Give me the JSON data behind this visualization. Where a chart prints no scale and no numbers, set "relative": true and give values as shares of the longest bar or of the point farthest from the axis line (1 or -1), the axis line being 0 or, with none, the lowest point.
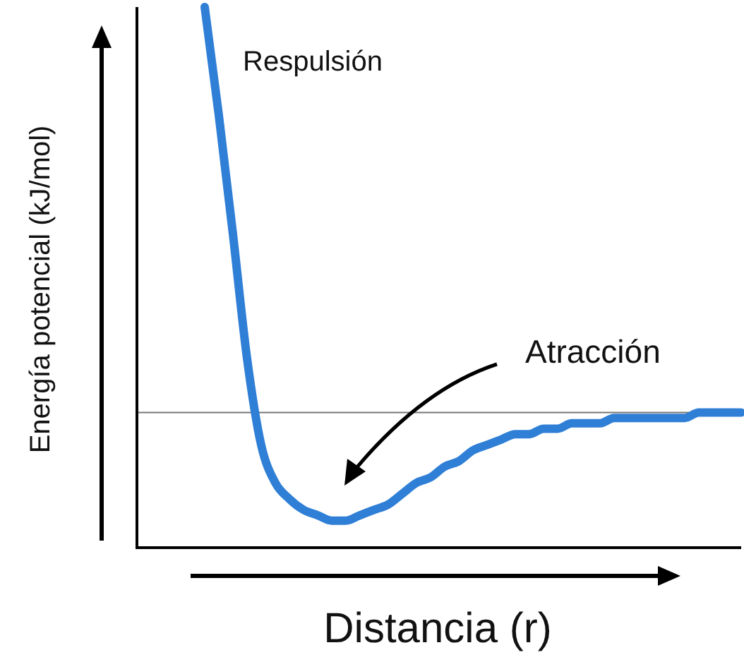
{
  "chart_data": {
    "type": "line",
    "relative": true,
    "xlabel": "Distancia (r)",
    "ylabel": "Energía potencial (kJ/mol)",
    "categories": [
      null,
      null,
      null,
      null,
      null,
      null,
      null,
      null,
      null,
      null,
      null,
      null,
      null,
      null,
      null,
      null,
      null,
      null,
      null,
      null,
      null,
      null,
      null,
      null,
      null,
      null,
      null,
      null,
      null,
      null,
      null,
      null,
      null,
      null,
      null,
      null,
      null,
      null,
      null
    ],
    "series": [
      {
        "color": "#2f7fd6",
        "values": [
          1.0,
          0.8,
          0.58,
          0.35,
          0.19,
          0.12,
          0.09,
          0.07,
          0.06,
          0.05,
          0.05,
          0.06,
          0.07,
          0.08,
          0.1,
          0.12,
          0.13,
          0.15,
          0.16,
          0.18,
          0.19,
          0.2,
          0.21,
          0.21,
          0.22,
          0.22,
          0.23,
          0.23,
          0.23,
          0.24,
          0.24,
          0.24,
          0.24,
          0.24,
          0.24,
          0.25,
          0.25,
          0.25,
          0.25
        ]
      }
    ],
    "ref_lines": [
      {
        "axis": "y",
        "value": 0.25,
        "color": "#777777"
      }
    ],
    "annotations": [
      "Respulsión",
      "Atracción"
    ],
    "marker": "none",
    "line_style": "solid"
  }
}
